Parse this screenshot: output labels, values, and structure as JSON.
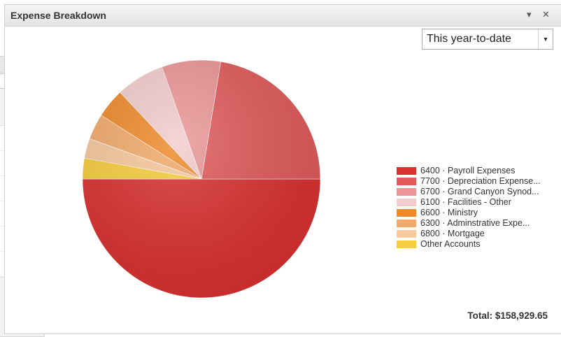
{
  "window": {
    "title": "Expense Breakdown",
    "minimize_icon": "chevron-down-icon",
    "close_icon": "close-icon"
  },
  "back_panel": {
    "minimize_icon": "chevron-down-icon",
    "close_icon": "close-icon"
  },
  "period_selector": {
    "value": "This year-to-date"
  },
  "legend": [
    {
      "label": "6400 · Payroll Expenses",
      "color": "#d93030"
    },
    {
      "label": "7700 · Depreciation Expense...",
      "color": "#e05a5a"
    },
    {
      "label": "6700 · Grand Canyon Synod...",
      "color": "#eb9696"
    },
    {
      "label": "6100 · Facilities - Other",
      "color": "#f3cccc"
    },
    {
      "label": "6600 · Ministry",
      "color": "#ee8a2a"
    },
    {
      "label": "6300 · Adminstrative Expe...",
      "color": "#f2aa6a"
    },
    {
      "label": "6800 · Mortgage",
      "color": "#f6c89b"
    },
    {
      "label": "Other Accounts",
      "color": "#f6cd3c"
    }
  ],
  "total": "Total: $158,929.65",
  "chart_data": {
    "type": "pie",
    "categories": [
      "6400 · Payroll Expenses",
      "7700 · Depreciation Expense...",
      "6700 · Grand Canyon Synod...",
      "6100 · Facilities - Other",
      "6600 · Ministry",
      "6300 · Adminstrative Expe...",
      "6800 · Mortgage",
      "Other Accounts"
    ],
    "values": [
      50.0,
      22.4,
      8.0,
      6.6,
      4.0,
      3.5,
      2.7,
      2.8
    ],
    "colors": [
      "#d93030",
      "#e05a5a",
      "#eb9696",
      "#f3cccc",
      "#ee8a2a",
      "#f2aa6a",
      "#f6c89b",
      "#f6cd3c"
    ],
    "unit": "percent of total"
  }
}
